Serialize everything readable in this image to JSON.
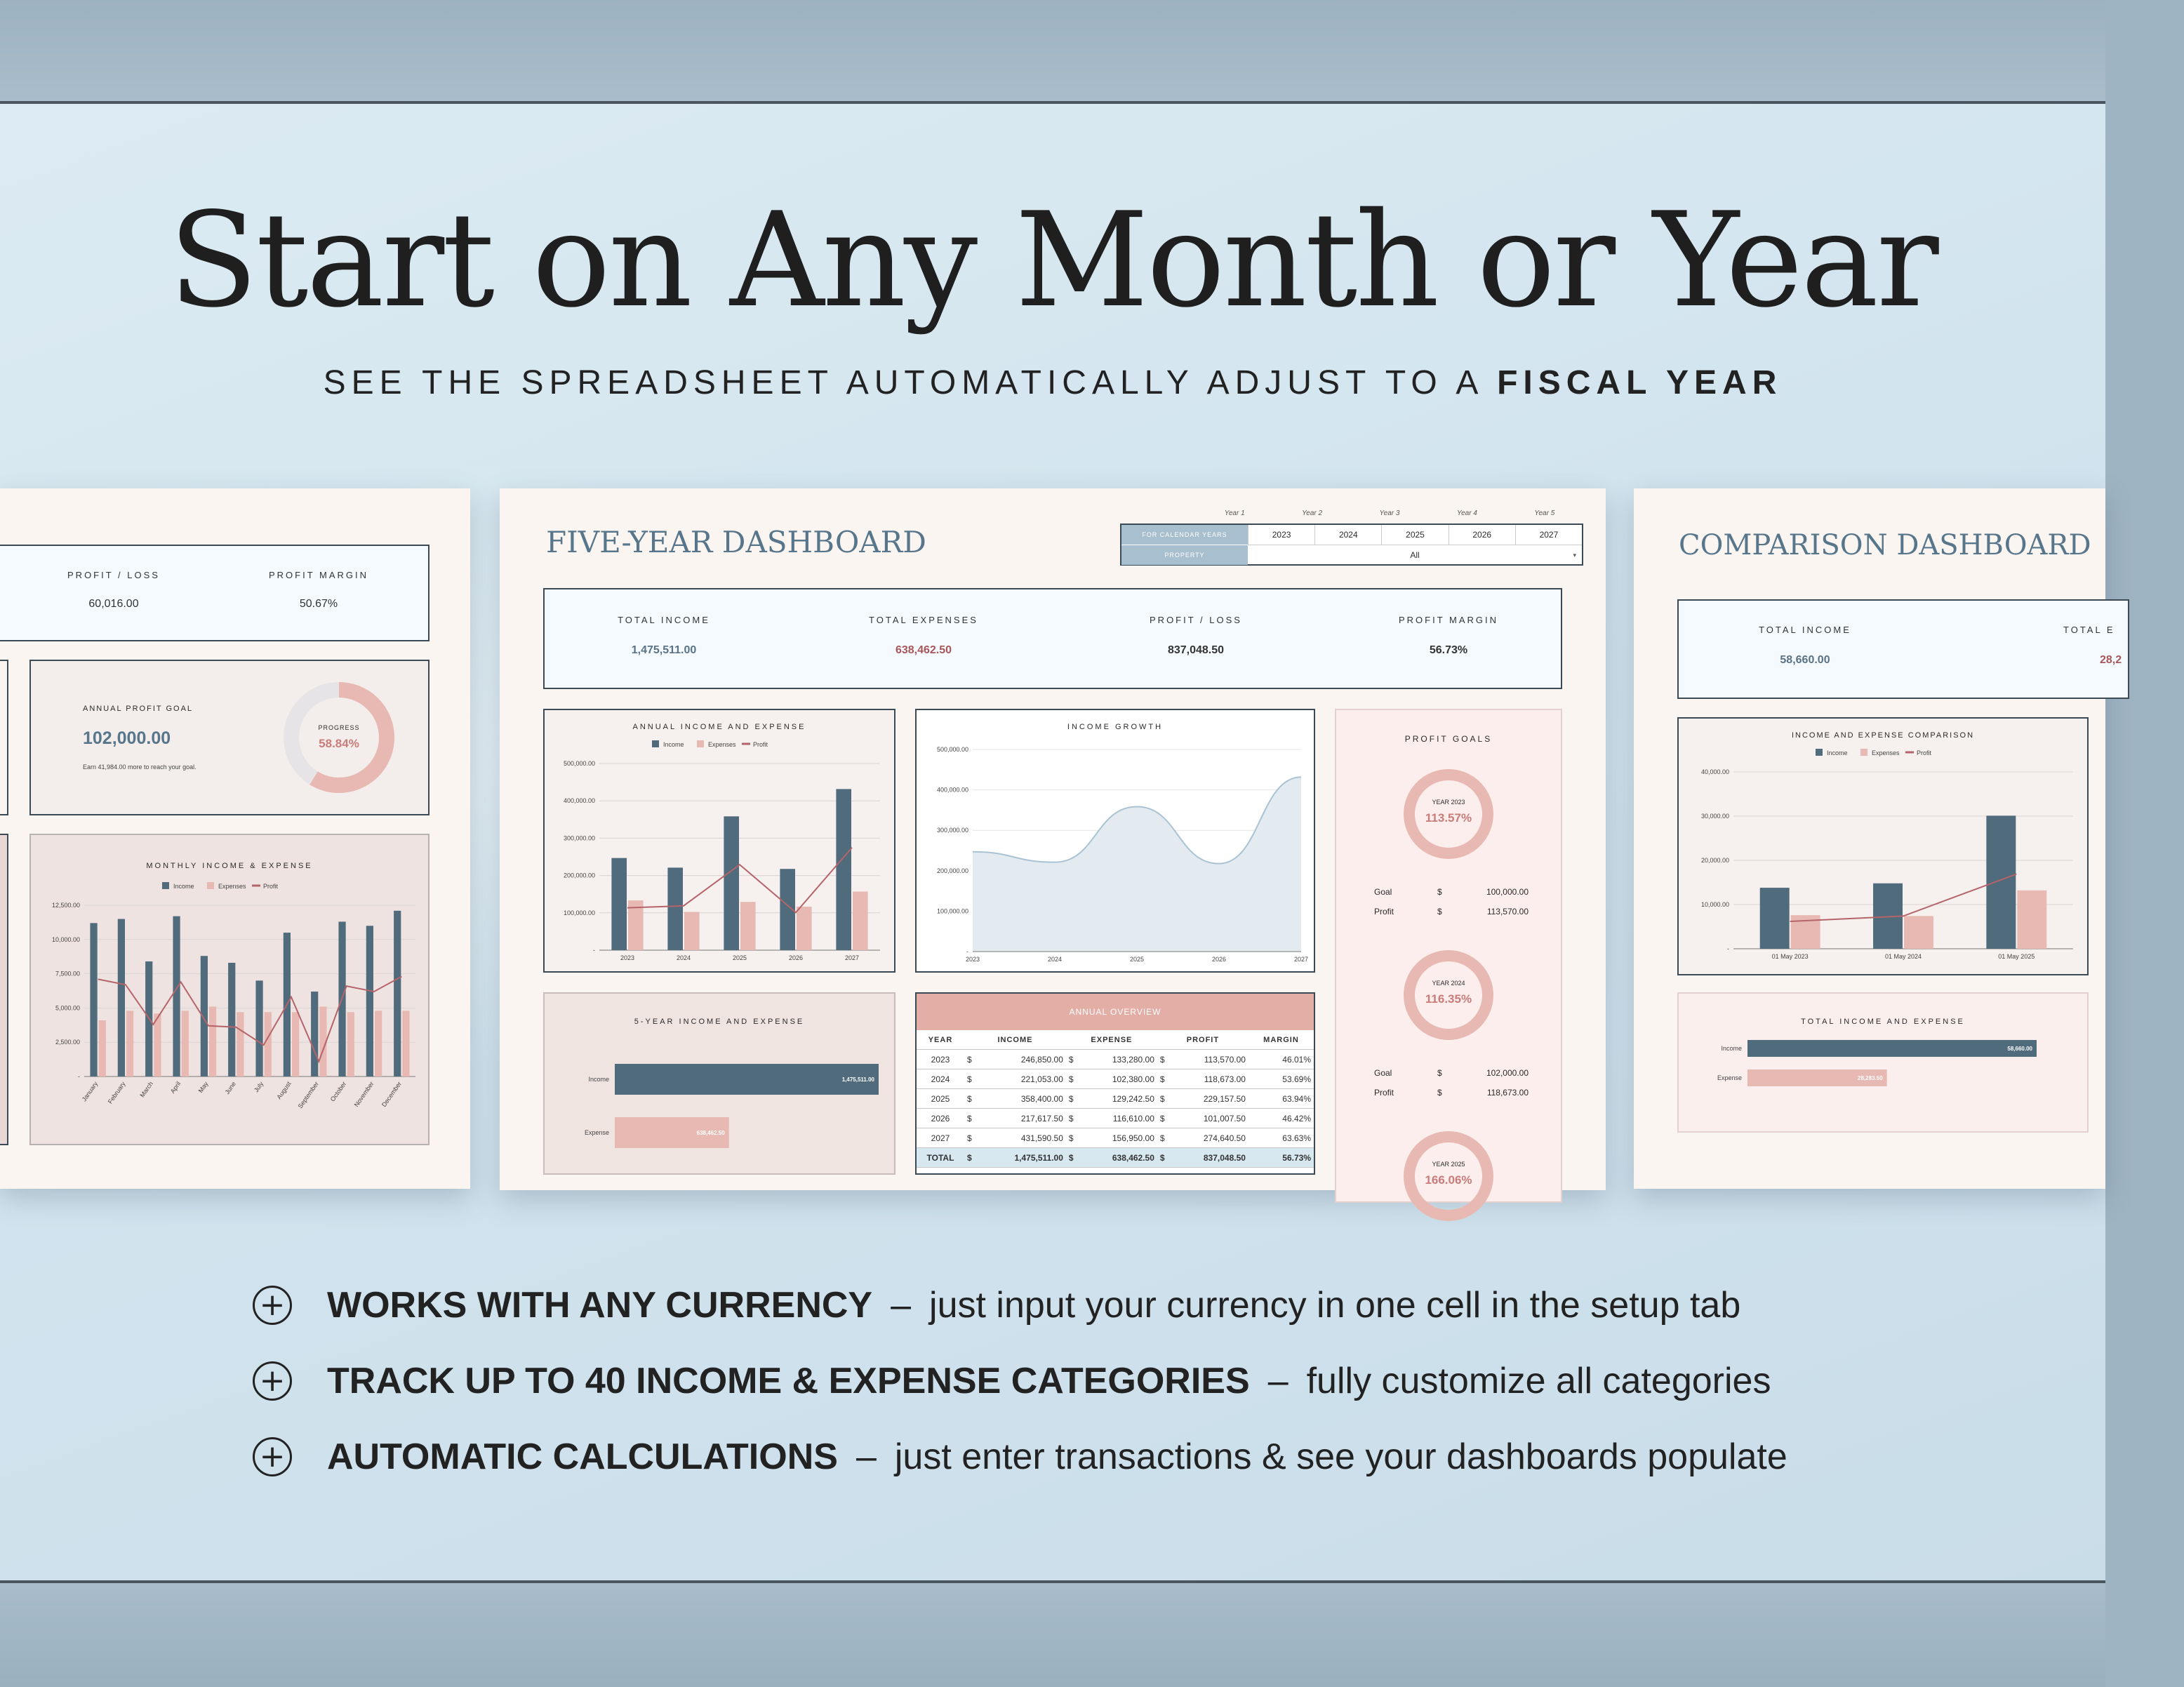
{
  "headline": "Start on Any Month or Year",
  "subline_pre": "SEE THE SPREADSHEET AUTOMATICALLY ADJUST TO A ",
  "subline_bold": "FISCAL YEAR",
  "left_card": {
    "kpis": [
      {
        "label": "PROFIT / LOSS",
        "value": "60,016.00"
      },
      {
        "label": "PROFIT MARGIN",
        "value": "50.67%"
      }
    ],
    "goal": {
      "label": "ANNUAL PROFIT GOAL",
      "value": "102,000.00",
      "note": "Earn 41,984.00 more to reach your goal.",
      "progress_label": "PROGRESS",
      "progress_text": "58.84%",
      "progress": 0.5884
    },
    "chart": {
      "title": "MONTHLY INCOME & EXPENSE",
      "legend": [
        "Income",
        "Expenses",
        "Profit"
      ]
    }
  },
  "center_card": {
    "title": "FIVE-YEAR DASHBOARD",
    "year_labels": [
      "Year 1",
      "Year 2",
      "Year 3",
      "Year 4",
      "Year 5"
    ],
    "selector_label": "FOR CALENDAR YEARS",
    "years": [
      "2023",
      "2024",
      "2025",
      "2026",
      "2027"
    ],
    "property_label": "PROPERTY",
    "property_value": "All",
    "kpis": [
      {
        "label": "TOTAL INCOME",
        "value": "1,475,511.00",
        "color": "#5a7285"
      },
      {
        "label": "TOTAL EXPENSES",
        "value": "638,462.50",
        "color": "#a7565a"
      },
      {
        "label": "PROFIT / LOSS",
        "value": "837,048.50",
        "color": "#333333"
      },
      {
        "label": "PROFIT MARGIN",
        "value": "56.73%",
        "color": "#333333"
      }
    ],
    "annual_chart_title": "ANNUAL INCOME AND EXPENSE",
    "annual_legend": [
      "Income",
      "Expenses",
      "Profit"
    ],
    "growth_chart_title": "INCOME GROWTH",
    "five_year_title": "5-YEAR INCOME AND EXPENSE",
    "five_year_bars": [
      {
        "label": "Income",
        "value_text": "1,475,511.00"
      },
      {
        "label": "Expense",
        "value_text": "638,462.50"
      }
    ],
    "overview": {
      "title": "ANNUAL OVERVIEW",
      "headers": [
        "YEAR",
        "INCOME",
        "EXPENSE",
        "PROFIT",
        "MARGIN"
      ],
      "currency": "$",
      "rows": [
        [
          "2023",
          "246,850.00",
          "133,280.00",
          "113,570.00",
          "46.01%"
        ],
        [
          "2024",
          "221,053.00",
          "102,380.00",
          "118,673.00",
          "53.69%"
        ],
        [
          "2025",
          "358,400.00",
          "129,242.50",
          "229,157.50",
          "63.94%"
        ],
        [
          "2026",
          "217,617.50",
          "116,610.00",
          "101,007.50",
          "46.42%"
        ],
        [
          "2027",
          "431,590.50",
          "156,950.00",
          "274,640.50",
          "63.63%"
        ]
      ],
      "total": [
        "TOTAL",
        "1,475,511.00",
        "638,462.50",
        "837,048.50",
        "56.73%"
      ]
    },
    "profit_goals": {
      "title": "PROFIT GOALS",
      "goal_label": "Goal",
      "profit_label": "Profit",
      "currency": "$",
      "items": [
        {
          "year": "YEAR 2023",
          "pct": "113.57%",
          "goal": "100,000.00",
          "profit": "113,570.00"
        },
        {
          "year": "YEAR 2024",
          "pct": "116.35%",
          "goal": "102,000.00",
          "profit": "118,673.00"
        },
        {
          "year": "YEAR 2025",
          "pct": "166.06%"
        }
      ]
    }
  },
  "right_card": {
    "title": "COMPARISON DASHBOARD",
    "kpis": [
      {
        "label": "TOTAL INCOME",
        "value": "58,660.00"
      },
      {
        "label": "TOTAL E",
        "value": "28,2"
      }
    ],
    "chart_title": "INCOME AND EXPENSE COMPARISON",
    "legend": [
      "Income",
      "Expenses",
      "Profit"
    ],
    "bars_title": "TOTAL INCOME AND EXPENSE",
    "bars": [
      {
        "label": "Income",
        "value_text": "58,660.00"
      },
      {
        "label": "Expense",
        "value_text": "28,283.50"
      }
    ]
  },
  "features": [
    {
      "title": "WORKS WITH ANY CURRENCY",
      "sep": "–",
      "desc": "just input your currency in one cell in the setup tab"
    },
    {
      "title": "TRACK UP TO 40 INCOME & EXPENSE CATEGORIES",
      "sep": "–",
      "desc": "fully customize all categories"
    },
    {
      "title": "AUTOMATIC CALCULATIONS",
      "sep": "–",
      "desc": "just enter transactions & see your dashboards populate"
    }
  ],
  "colors": {
    "income": "#4f6b7c",
    "expense": "#e8b9b2",
    "profit": "#b5646a",
    "accent_blue": "#57768c"
  },
  "chart_data": [
    {
      "type": "bar",
      "title": "ANNUAL INCOME AND EXPENSE",
      "categories": [
        "2023",
        "2024",
        "2025",
        "2026",
        "2027"
      ],
      "ylim": [
        0,
        500000
      ],
      "yticks": [
        "-",
        "100,000.00",
        "200,000.00",
        "300,000.00",
        "400,000.00",
        "500,000.00"
      ],
      "series": [
        {
          "name": "Income",
          "values": [
            246850,
            221053,
            358400,
            217617.5,
            431590.5
          ]
        },
        {
          "name": "Expenses",
          "values": [
            133280,
            102380,
            129242.5,
            116610,
            156950
          ]
        },
        {
          "name": "Profit",
          "values": [
            113570,
            118673,
            229157.5,
            101007.5,
            274640.5
          ]
        }
      ]
    },
    {
      "type": "area",
      "title": "INCOME GROWTH",
      "categories": [
        "2023",
        "2024",
        "2025",
        "2026",
        "2027"
      ],
      "ylim": [
        0,
        500000
      ],
      "yticks": [
        "-",
        "100,000.00",
        "200,000.00",
        "300,000.00",
        "400,000.00",
        "500,000.00"
      ],
      "series": [
        {
          "name": "Income",
          "values": [
            246850,
            221053,
            358400,
            217617.5,
            431590.5
          ]
        }
      ]
    },
    {
      "type": "bar",
      "title": "MONTHLY INCOME & EXPENSE",
      "categories": [
        "January",
        "February",
        "March",
        "April",
        "May",
        "June",
        "July",
        "August",
        "September",
        "October",
        "November",
        "December"
      ],
      "ylim": [
        0,
        12500
      ],
      "yticks": [
        "-",
        "2,500.00",
        "5,000.00",
        "7,500.00",
        "10,000.00",
        "12,500.00"
      ],
      "series": [
        {
          "name": "Income",
          "values": [
            11200,
            11500,
            8400,
            11700,
            8800,
            8300,
            7000,
            10500,
            6200,
            11300,
            11000,
            12100
          ]
        },
        {
          "name": "Expenses",
          "values": [
            4100,
            4800,
            4600,
            4800,
            5100,
            4700,
            4700,
            4700,
            5100,
            4700,
            4800,
            4800
          ]
        },
        {
          "name": "Profit",
          "values": [
            7100,
            6700,
            3800,
            6900,
            3700,
            3600,
            2300,
            5800,
            1100,
            6600,
            6200,
            7300
          ]
        }
      ]
    },
    {
      "type": "bar",
      "title": "INCOME AND EXPENSE COMPARISON",
      "categories": [
        "01 May 2023",
        "01 May 2024",
        "01 May 2025"
      ],
      "ylim": [
        0,
        40000
      ],
      "yticks": [
        "-",
        "10,000.00",
        "20,000.00",
        "30,000.00",
        "40,000.00"
      ],
      "series": [
        {
          "name": "Income",
          "values": [
            13800,
            14800,
            30100
          ]
        },
        {
          "name": "Expenses",
          "values": [
            7600,
            7400,
            13200
          ]
        },
        {
          "name": "Profit",
          "values": [
            6200,
            7400,
            16900
          ]
        }
      ]
    },
    {
      "type": "bar",
      "title": "5-YEAR INCOME AND EXPENSE",
      "categories": [
        "Income",
        "Expense"
      ],
      "series": [
        {
          "name": "Total",
          "values": [
            1475511,
            638462.5
          ]
        }
      ]
    },
    {
      "type": "bar",
      "title": "TOTAL INCOME AND EXPENSE",
      "categories": [
        "Income",
        "Expense"
      ],
      "series": [
        {
          "name": "Total",
          "values": [
            58660,
            28283.5
          ]
        }
      ]
    }
  ]
}
